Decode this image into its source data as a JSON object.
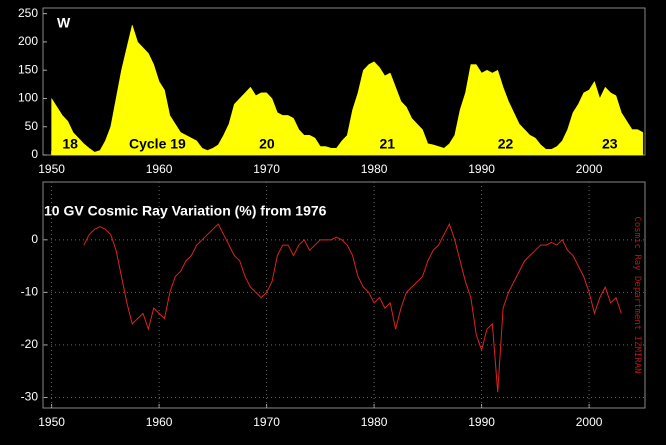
{
  "chart_data": [
    {
      "type": "area",
      "title": "W",
      "color": "#ffff00",
      "annotations": [
        "18",
        "Cycle 19",
        "20",
        "21",
        "22",
        "23"
      ],
      "x": [
        1950,
        1950.5,
        1951,
        1951.5,
        1952,
        1952.5,
        1953,
        1953.5,
        1954,
        1954.5,
        1955,
        1955.5,
        1956,
        1956.5,
        1957,
        1957.5,
        1958,
        1958.5,
        1959,
        1959.5,
        1960,
        1960.5,
        1961,
        1961.5,
        1962,
        1962.5,
        1963,
        1963.5,
        1964,
        1964.5,
        1965,
        1965.5,
        1966,
        1966.5,
        1967,
        1967.5,
        1968,
        1968.5,
        1969,
        1969.5,
        1970,
        1970.5,
        1971,
        1971.5,
        1972,
        1972.5,
        1973,
        1973.5,
        1974,
        1974.5,
        1975,
        1975.5,
        1976,
        1976.5,
        1977,
        1977.5,
        1978,
        1978.5,
        1979,
        1979.5,
        1980,
        1980.5,
        1981,
        1981.5,
        1982,
        1982.5,
        1983,
        1983.5,
        1984,
        1984.5,
        1985,
        1985.5,
        1986,
        1986.5,
        1987,
        1987.5,
        1988,
        1988.5,
        1989,
        1989.5,
        1990,
        1990.5,
        1991,
        1991.5,
        1992,
        1992.5,
        1993,
        1993.5,
        1994,
        1994.5,
        1995,
        1995.5,
        1996,
        1996.5,
        1997,
        1997.5,
        1998,
        1998.5,
        1999,
        1999.5,
        2000,
        2000.5,
        2001,
        2001.5,
        2002,
        2002.5,
        2003,
        2003.5,
        2004,
        2004.5,
        2005
      ],
      "values": [
        100,
        85,
        70,
        60,
        40,
        30,
        20,
        12,
        5,
        8,
        25,
        50,
        100,
        150,
        190,
        230,
        200,
        190,
        180,
        160,
        130,
        115,
        70,
        55,
        40,
        35,
        30,
        25,
        12,
        8,
        12,
        18,
        35,
        55,
        90,
        100,
        110,
        120,
        105,
        110,
        110,
        100,
        75,
        70,
        70,
        65,
        45,
        35,
        35,
        30,
        15,
        15,
        12,
        12,
        25,
        35,
        80,
        110,
        150,
        160,
        165,
        155,
        140,
        145,
        120,
        95,
        85,
        65,
        55,
        45,
        20,
        18,
        15,
        12,
        20,
        35,
        80,
        110,
        160,
        160,
        145,
        150,
        145,
        150,
        120,
        95,
        75,
        55,
        45,
        35,
        30,
        18,
        10,
        10,
        15,
        25,
        45,
        75,
        90,
        110,
        115,
        130,
        100,
        120,
        110,
        105,
        75,
        60,
        45,
        45,
        40
      ],
      "xlim": [
        1949.2,
        2005.2
      ],
      "ylim": [
        0,
        260
      ],
      "xticks": [
        1950,
        1960,
        1970,
        1980,
        1990,
        2000
      ],
      "yticks": [
        0,
        50,
        100,
        150,
        200,
        250
      ],
      "grid": false
    },
    {
      "type": "line",
      "title": "10 GV Cosmic Ray Variation (%) from 1976",
      "color": "#dd2222",
      "annotations": [
        "Cosmic Ray Department IZMIRAN"
      ],
      "x": [
        1953,
        1953.5,
        1954,
        1954.5,
        1955,
        1955.5,
        1956,
        1956.5,
        1957,
        1957.5,
        1958,
        1958.5,
        1959,
        1959.5,
        1960,
        1960.5,
        1961,
        1961.5,
        1962,
        1962.5,
        1963,
        1963.5,
        1964,
        1964.5,
        1965,
        1965.5,
        1966,
        1966.5,
        1967,
        1967.5,
        1968,
        1968.5,
        1969,
        1969.5,
        1970,
        1970.5,
        1971,
        1971.5,
        1972,
        1972.5,
        1973,
        1973.5,
        1974,
        1974.5,
        1975,
        1975.5,
        1976,
        1976.5,
        1977,
        1977.5,
        1978,
        1978.5,
        1979,
        1979.5,
        1980,
        1980.5,
        1981,
        1981.5,
        1982,
        1982.5,
        1983,
        1983.5,
        1984,
        1984.5,
        1985,
        1985.5,
        1986,
        1986.5,
        1987,
        1987.5,
        1988,
        1988.5,
        1989,
        1989.5,
        1990,
        1990.5,
        1991,
        1991.5,
        1992,
        1992.5,
        1993,
        1993.5,
        1994,
        1994.5,
        1995,
        1995.5,
        1996,
        1996.5,
        1997,
        1997.5,
        1998,
        1998.5,
        1999,
        1999.5,
        2000,
        2000.5,
        2001,
        2001.5,
        2002,
        2002.5,
        2003
      ],
      "values": [
        -1,
        1,
        2,
        2.5,
        2,
        1,
        -2,
        -7,
        -12,
        -16,
        -15,
        -14,
        -17,
        -13,
        -14,
        -15,
        -10,
        -7,
        -6,
        -4,
        -3,
        -1,
        0,
        1,
        2,
        3,
        1,
        -1,
        -3,
        -4,
        -7,
        -9,
        -10,
        -11,
        -10,
        -8,
        -3,
        -1,
        -1,
        -3,
        -1,
        0,
        -2,
        -1,
        0,
        0,
        0,
        0.5,
        0,
        -1,
        -3,
        -7,
        -9,
        -10,
        -12,
        -11,
        -13,
        -12,
        -17,
        -13,
        -10,
        -9,
        -8,
        -7,
        -4,
        -2,
        -1,
        1,
        3,
        0,
        -4,
        -8,
        -11,
        -18,
        -21,
        -17,
        -16,
        -29,
        -13,
        -10,
        -8,
        -6,
        -4,
        -3,
        -2,
        -1,
        -1,
        -0.5,
        -1,
        0,
        -2,
        -3,
        -5,
        -7,
        -10,
        -14,
        -11,
        -9,
        -12,
        -11,
        -14
      ],
      "xlim": [
        1949.2,
        2005.2
      ],
      "ylim": [
        -32,
        11
      ],
      "xticks": [
        1950,
        1960,
        1970,
        1980,
        1990,
        2000
      ],
      "yticks": [
        -30,
        -20,
        -10,
        0
      ],
      "grid": true
    }
  ]
}
